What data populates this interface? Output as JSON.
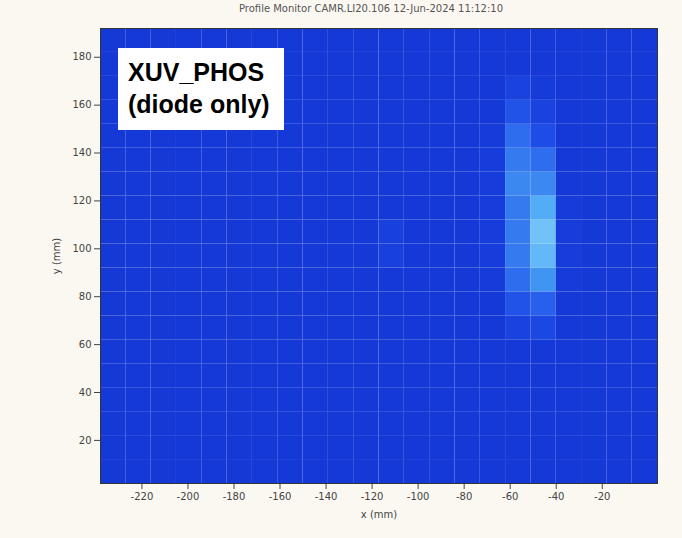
{
  "chart_data": {
    "type": "heatmap",
    "title": "Profile Monitor CAMR.LI20.106 12-Jun-2024 11:12:10",
    "annotation": [
      "XUV_PHOS",
      "(diode only)"
    ],
    "x_label": "x (mm)",
    "y_label": "y (mm)",
    "xlim": [
      -238,
      4
    ],
    "ylim": [
      2,
      192
    ],
    "xticks": [
      -220,
      -200,
      -180,
      -160,
      -140,
      -120,
      -100,
      -80,
      -60,
      -40,
      -20
    ],
    "yticks": [
      20,
      40,
      60,
      80,
      100,
      120,
      140,
      160,
      180
    ],
    "x_edges": [
      -238,
      -227,
      -216,
      -205,
      -194,
      -183,
      -172,
      -161,
      -150,
      -139,
      -128,
      -117,
      -106,
      -95,
      -84,
      -73,
      -62,
      -51,
      -40,
      -29,
      -18,
      -7,
      4
    ],
    "y_edges": [
      2,
      12,
      22,
      32,
      42,
      52,
      62,
      72,
      82,
      92,
      102,
      112,
      122,
      132,
      142,
      152,
      162,
      172,
      182,
      192
    ],
    "zlim": [
      0,
      1
    ],
    "z": [
      [
        0.1,
        0.1,
        0.1,
        0.1,
        0.1,
        0.1,
        0.1,
        0.1,
        0.1,
        0.1,
        0.1,
        0.1,
        0.1,
        0.1,
        0.1,
        0.1,
        0.1,
        0.1,
        0.1,
        0.1,
        0.1,
        0.1
      ],
      [
        0.1,
        0.1,
        0.1,
        0.1,
        0.1,
        0.1,
        0.1,
        0.1,
        0.1,
        0.1,
        0.1,
        0.1,
        0.1,
        0.1,
        0.1,
        0.1,
        0.1,
        0.1,
        0.1,
        0.1,
        0.1,
        0.1
      ],
      [
        0.1,
        0.1,
        0.1,
        0.1,
        0.1,
        0.1,
        0.1,
        0.1,
        0.1,
        0.1,
        0.1,
        0.1,
        0.1,
        0.1,
        0.1,
        0.1,
        0.1,
        0.1,
        0.1,
        0.1,
        0.1,
        0.1
      ],
      [
        0.1,
        0.1,
        0.1,
        0.1,
        0.1,
        0.1,
        0.1,
        0.1,
        0.1,
        0.1,
        0.1,
        0.1,
        0.1,
        0.1,
        0.1,
        0.1,
        0.1,
        0.1,
        0.1,
        0.1,
        0.1,
        0.1
      ],
      [
        0.1,
        0.1,
        0.1,
        0.1,
        0.1,
        0.1,
        0.1,
        0.1,
        0.1,
        0.1,
        0.1,
        0.1,
        0.1,
        0.1,
        0.1,
        0.1,
        0.1,
        0.1,
        0.1,
        0.1,
        0.1,
        0.1
      ],
      [
        0.1,
        0.1,
        0.1,
        0.1,
        0.1,
        0.1,
        0.1,
        0.1,
        0.1,
        0.1,
        0.1,
        0.1,
        0.1,
        0.1,
        0.1,
        0.1,
        0.1,
        0.1,
        0.1,
        0.1,
        0.1,
        0.1
      ],
      [
        0.1,
        0.1,
        0.1,
        0.1,
        0.1,
        0.1,
        0.1,
        0.1,
        0.1,
        0.1,
        0.1,
        0.1,
        0.1,
        0.1,
        0.1,
        0.1,
        0.2,
        0.25,
        0.1,
        0.1,
        0.1,
        0.1
      ],
      [
        0.1,
        0.1,
        0.1,
        0.1,
        0.1,
        0.1,
        0.1,
        0.1,
        0.1,
        0.1,
        0.1,
        0.1,
        0.1,
        0.1,
        0.1,
        0.1,
        0.35,
        0.4,
        0.1,
        0.1,
        0.1,
        0.1
      ],
      [
        0.1,
        0.1,
        0.1,
        0.1,
        0.1,
        0.1,
        0.1,
        0.1,
        0.1,
        0.1,
        0.1,
        0.1,
        0.1,
        0.1,
        0.1,
        0.12,
        0.45,
        0.6,
        0.12,
        0.1,
        0.1,
        0.1
      ],
      [
        0.1,
        0.1,
        0.1,
        0.1,
        0.1,
        0.1,
        0.1,
        0.1,
        0.1,
        0.1,
        0.1,
        0.18,
        0.1,
        0.1,
        0.1,
        0.15,
        0.5,
        0.75,
        0.14,
        0.1,
        0.1,
        0.1
      ],
      [
        0.1,
        0.1,
        0.1,
        0.1,
        0.1,
        0.1,
        0.1,
        0.1,
        0.1,
        0.1,
        0.1,
        0.18,
        0.1,
        0.1,
        0.1,
        0.15,
        0.5,
        0.8,
        0.14,
        0.1,
        0.1,
        0.1
      ],
      [
        0.1,
        0.1,
        0.1,
        0.1,
        0.1,
        0.1,
        0.1,
        0.1,
        0.1,
        0.1,
        0.1,
        0.1,
        0.1,
        0.1,
        0.1,
        0.15,
        0.5,
        0.7,
        0.12,
        0.1,
        0.1,
        0.1
      ],
      [
        0.1,
        0.1,
        0.1,
        0.1,
        0.1,
        0.1,
        0.1,
        0.1,
        0.1,
        0.1,
        0.1,
        0.1,
        0.1,
        0.1,
        0.1,
        0.15,
        0.55,
        0.55,
        0.1,
        0.1,
        0.1,
        0.1
      ],
      [
        0.1,
        0.1,
        0.1,
        0.1,
        0.1,
        0.1,
        0.1,
        0.1,
        0.1,
        0.1,
        0.1,
        0.1,
        0.1,
        0.1,
        0.1,
        0.15,
        0.5,
        0.45,
        0.1,
        0.1,
        0.1,
        0.1
      ],
      [
        0.1,
        0.1,
        0.1,
        0.1,
        0.1,
        0.1,
        0.1,
        0.1,
        0.1,
        0.1,
        0.1,
        0.1,
        0.1,
        0.1,
        0.1,
        0.12,
        0.45,
        0.3,
        0.1,
        0.1,
        0.1,
        0.1
      ],
      [
        0.1,
        0.1,
        0.1,
        0.1,
        0.1,
        0.1,
        0.1,
        0.1,
        0.1,
        0.1,
        0.1,
        0.1,
        0.1,
        0.1,
        0.1,
        0.1,
        0.35,
        0.2,
        0.1,
        0.1,
        0.1,
        0.1
      ],
      [
        0.1,
        0.1,
        0.1,
        0.1,
        0.1,
        0.1,
        0.1,
        0.1,
        0.1,
        0.1,
        0.1,
        0.1,
        0.1,
        0.1,
        0.1,
        0.1,
        0.2,
        0.12,
        0.1,
        0.1,
        0.1,
        0.1
      ],
      [
        0.1,
        0.1,
        0.1,
        0.1,
        0.1,
        0.1,
        0.1,
        0.1,
        0.1,
        0.1,
        0.1,
        0.1,
        0.1,
        0.1,
        0.1,
        0.1,
        0.1,
        0.1,
        0.1,
        0.1,
        0.1,
        0.1
      ],
      [
        0.1,
        0.1,
        0.1,
        0.1,
        0.1,
        0.1,
        0.1,
        0.1,
        0.1,
        0.1,
        0.1,
        0.1,
        0.1,
        0.1,
        0.1,
        0.1,
        0.1,
        0.1,
        0.1,
        0.1,
        0.1,
        0.1
      ]
    ]
  }
}
